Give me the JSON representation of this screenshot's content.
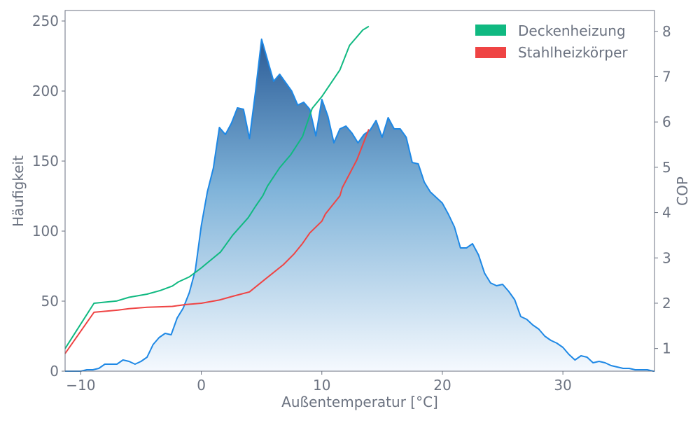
{
  "chart_data": {
    "type": "area",
    "xlabel": "Außentemperatur [°C]",
    "ylabel": "Häufigkeit",
    "y2label": "COP",
    "xlim": [
      -11.3,
      37.6
    ],
    "ylim": [
      0,
      257.5
    ],
    "y2lim": [
      0.5,
      8.46
    ],
    "xticks": [
      "−10",
      "0",
      "10",
      "20",
      "30"
    ],
    "xtick_values": [
      -10,
      0,
      10,
      20,
      30
    ],
    "yticks": [
      "0",
      "50",
      "100",
      "150",
      "200",
      "250"
    ],
    "ytick_values": [
      0,
      50,
      100,
      150,
      200,
      250
    ],
    "y2ticks": [
      "1",
      "2",
      "3",
      "4",
      "5",
      "6",
      "7",
      "8"
    ],
    "y2tick_values": [
      1,
      2,
      3,
      4,
      5,
      6,
      7,
      8
    ],
    "grid": false,
    "legend_placement": "top-right",
    "histogram": {
      "color": "#1e88e5",
      "fill_top": "#2b5c97",
      "fill_bottom": "#f5f9fe",
      "x": [
        -11,
        -10.5,
        -10,
        -9.5,
        -9,
        -8.5,
        -8,
        -7.5,
        -7,
        -6.5,
        -6,
        -5.5,
        -5,
        -4.5,
        -4,
        -3.5,
        -3,
        -2.5,
        -2,
        -1.5,
        -1,
        -0.5,
        0,
        0.5,
        1,
        1.5,
        2,
        2.5,
        3,
        3.5,
        4,
        4.5,
        5,
        5.5,
        6,
        6.5,
        7,
        7.5,
        8,
        8.5,
        9,
        9.5,
        10,
        10.5,
        11,
        11.5,
        12,
        12.5,
        13,
        13.5,
        14,
        14.5,
        15,
        15.5,
        16,
        16.5,
        17,
        17.5,
        18,
        18.5,
        19,
        19.5,
        20,
        20.5,
        21,
        21.5,
        22,
        22.5,
        23,
        23.5,
        24,
        24.5,
        25,
        25.5,
        26,
        26.5,
        27,
        27.5,
        28,
        28.5,
        29,
        29.5,
        30,
        30.5,
        31,
        31.5,
        32,
        32.5,
        33,
        33.5,
        34,
        34.5,
        35,
        35.5,
        36,
        36.5,
        37,
        37.5
      ],
      "values": [
        0,
        0,
        0,
        1,
        1,
        2,
        5,
        5,
        5,
        8,
        7,
        5,
        7,
        10,
        19,
        24,
        27,
        26,
        38,
        45,
        56,
        72,
        104,
        128,
        145,
        174,
        169,
        177,
        188,
        187,
        166,
        200,
        237,
        222,
        207,
        212,
        206,
        200,
        190,
        192,
        187,
        168,
        194,
        182,
        163,
        173,
        175,
        170,
        163,
        169,
        172,
        179,
        167,
        181,
        173,
        173,
        167,
        149,
        148,
        135,
        128,
        124,
        120,
        112,
        103,
        88,
        88,
        91,
        83,
        70,
        63,
        61,
        62,
        57,
        51,
        39,
        37,
        33,
        30,
        25,
        22,
        20,
        17,
        12,
        8,
        11,
        10,
        6,
        7,
        6,
        4,
        3,
        2,
        2,
        1,
        1,
        1,
        0
      ]
    },
    "series": [
      {
        "name": "Deckenheizung",
        "color": "#10b981",
        "x": [
          -11.3,
          -8.9,
          -7,
          -6,
          -4.5,
          -3.4,
          -2.4,
          -1.9,
          -1,
          0,
          0.5,
          1.6,
          2.6,
          3.9,
          4.5,
          5.1,
          5.5,
          6.5,
          7.4,
          8.4,
          9.2,
          10,
          11.5,
          12.3,
          13.4,
          13.9
        ],
        "y": [
          1.0,
          2.0,
          2.05,
          2.13,
          2.2,
          2.28,
          2.38,
          2.47,
          2.58,
          2.78,
          2.89,
          3.13,
          3.5,
          3.89,
          4.14,
          4.37,
          4.59,
          4.99,
          5.27,
          5.68,
          6.3,
          6.56,
          7.15,
          7.69,
          8.03,
          8.11
        ]
      },
      {
        "name": "Stahlheizkörper",
        "color": "#ef4444",
        "x": [
          -11.3,
          -8.9,
          -6.9,
          -6,
          -4.5,
          -2.4,
          -1.3,
          0,
          1.5,
          2.7,
          4,
          5.3,
          6.8,
          7.7,
          8.4,
          9,
          10,
          10.3,
          11.5,
          11.7,
          12.9,
          13.9
        ],
        "y": [
          0.89,
          1.8,
          1.85,
          1.88,
          1.91,
          1.93,
          1.97,
          2.0,
          2.07,
          2.16,
          2.25,
          2.53,
          2.85,
          3.09,
          3.32,
          3.55,
          3.81,
          3.97,
          4.37,
          4.55,
          5.16,
          5.84
        ]
      }
    ]
  }
}
